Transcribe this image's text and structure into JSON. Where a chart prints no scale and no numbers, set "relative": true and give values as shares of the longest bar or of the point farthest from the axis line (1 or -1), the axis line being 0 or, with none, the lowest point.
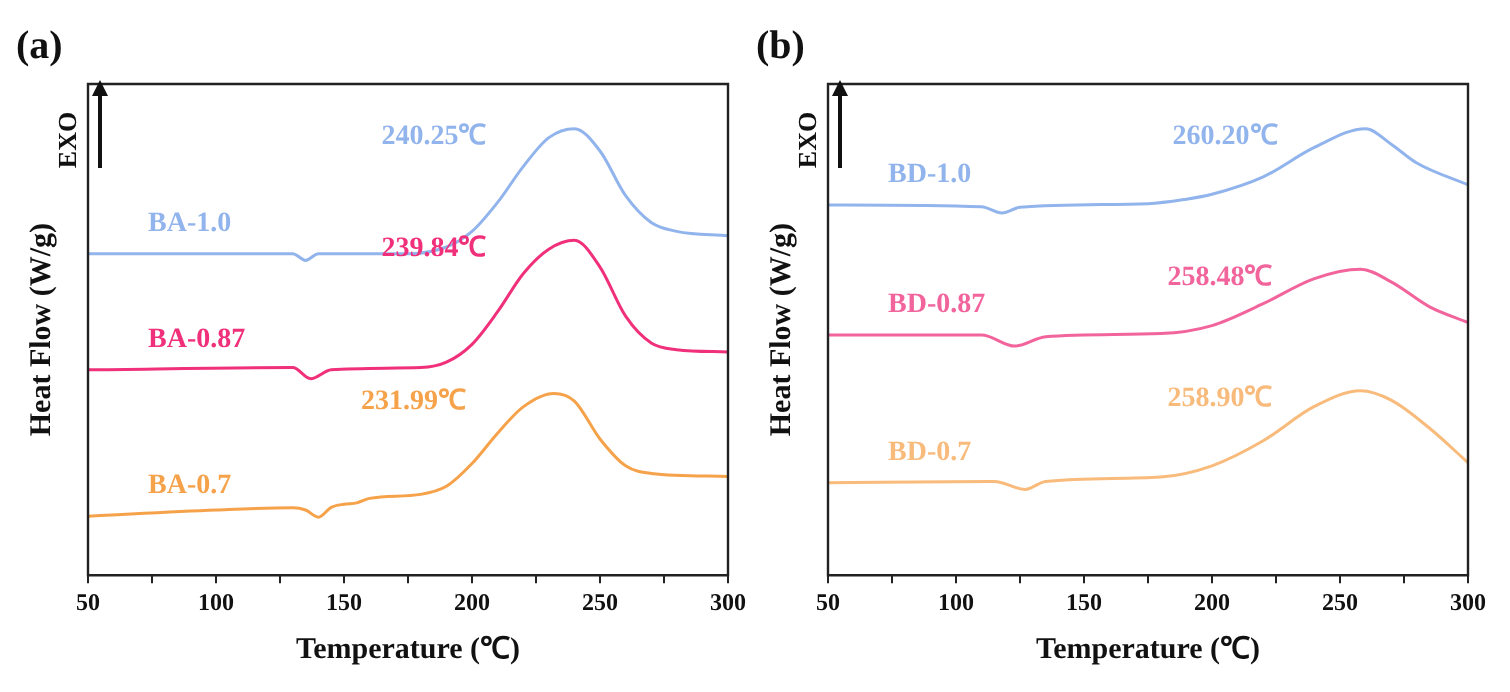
{
  "chart_data": [
    {
      "type": "line",
      "title": "(a)",
      "xlabel": "Temperature (℃)",
      "ylabel": "Heat Flow (W/g)",
      "relative": true,
      "xlim": [
        50,
        300
      ],
      "xticks": [
        50,
        {
          "value": 75,
          "label": null
        },
        100,
        {
          "value": 125,
          "label": null
        },
        150,
        {
          "value": 175,
          "label": null
        },
        200,
        {
          "value": 225,
          "label": null
        },
        250,
        {
          "value": 275,
          "label": null
        },
        300
      ],
      "marker": "none",
      "legend": false,
      "grid": false,
      "series": [
        {
          "name": "BA-1.0",
          "color": "#92b4ec",
          "x": [
            50,
            100,
            130,
            135,
            140,
            175,
            190,
            200,
            210,
            220,
            230,
            240,
            250,
            260,
            270,
            280,
            300
          ],
          "values": [
            0.72,
            0.72,
            0.72,
            0.705,
            0.72,
            0.72,
            0.735,
            0.77,
            0.835,
            0.915,
            0.98,
            1.0,
            0.95,
            0.85,
            0.79,
            0.77,
            0.76
          ]
        },
        {
          "name": "BA-0.87",
          "color": "#f0307a",
          "x": [
            50,
            130,
            137,
            145,
            180,
            190,
            200,
            210,
            220,
            230,
            240,
            250,
            260,
            270,
            280,
            300
          ],
          "values": [
            0.46,
            0.465,
            0.44,
            0.46,
            0.465,
            0.477,
            0.517,
            0.59,
            0.675,
            0.73,
            0.75,
            0.69,
            0.58,
            0.52,
            0.505,
            0.5
          ]
        },
        {
          "name": "BA-0.7",
          "color": "#f5a24a",
          "x": [
            50,
            100,
            130,
            135,
            140,
            145,
            150,
            155,
            160,
            180,
            190,
            200,
            210,
            220,
            232,
            240,
            250,
            260,
            270,
            300
          ],
          "values": [
            0.132,
            0.146,
            0.151,
            0.146,
            0.13,
            0.152,
            0.159,
            0.162,
            0.172,
            0.181,
            0.199,
            0.25,
            0.318,
            0.377,
            0.407,
            0.39,
            0.305,
            0.245,
            0.228,
            0.221
          ]
        }
      ],
      "annotations": [
        "EXO",
        "240.25℃",
        "239.84℃",
        "231.99℃"
      ]
    },
    {
      "type": "line",
      "title": "(b)",
      "xlabel": "Temperature (℃)",
      "ylabel": "Heat Flow (W/g)",
      "relative": true,
      "xlim": [
        50,
        300
      ],
      "xticks": [
        50,
        {
          "value": 75,
          "label": null
        },
        100,
        {
          "value": 125,
          "label": null
        },
        150,
        {
          "value": 175,
          "label": null
        },
        200,
        {
          "value": 225,
          "label": null
        },
        250,
        {
          "value": 275,
          "label": null
        },
        300
      ],
      "marker": "none",
      "legend": false,
      "grid": false,
      "series": [
        {
          "name": "BD-1.0",
          "color": "#92b4ec",
          "x": [
            50,
            110,
            118,
            125,
            175,
            190,
            200,
            220,
            240,
            260,
            270,
            280,
            300
          ],
          "values": [
            0.829,
            0.825,
            0.811,
            0.824,
            0.832,
            0.842,
            0.853,
            0.892,
            0.958,
            1.0,
            0.965,
            0.923,
            0.874
          ]
        },
        {
          "name": "BD-0.87",
          "color": "#f2649c",
          "x": [
            50,
            110,
            123,
            135,
            180,
            200,
            220,
            240,
            258,
            270,
            285,
            300
          ],
          "values": [
            0.538,
            0.538,
            0.513,
            0.534,
            0.541,
            0.559,
            0.608,
            0.664,
            0.685,
            0.657,
            0.601,
            0.566
          ]
        },
        {
          "name": "BD-0.7",
          "color": "#f8bb7c",
          "x": [
            50,
            115,
            127,
            135,
            180,
            200,
            220,
            240,
            258,
            270,
            285,
            300
          ],
          "values": [
            0.207,
            0.21,
            0.192,
            0.21,
            0.22,
            0.245,
            0.301,
            0.378,
            0.413,
            0.392,
            0.329,
            0.252
          ]
        }
      ],
      "annotations": [
        "EXO",
        "260.20℃",
        "258.48℃",
        "258.90℃"
      ]
    }
  ]
}
